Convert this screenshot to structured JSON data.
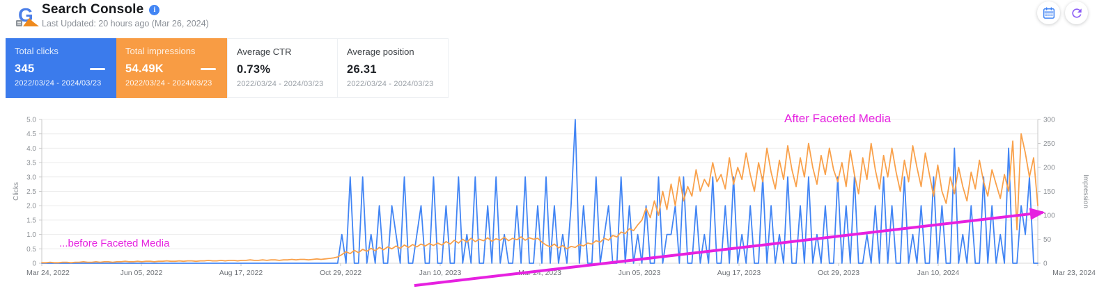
{
  "header": {
    "title": "Search Console",
    "subtitle": "Last Updated: 20 hours ago (Mar 26, 2024)",
    "logo_icon": "search-console-logo",
    "info_icon": "info-icon",
    "actions": [
      {
        "name": "calendar",
        "icon": "calendar-icon",
        "color": "#4285F4"
      },
      {
        "name": "refresh",
        "icon": "refresh-icon",
        "color": "#8B5CF6"
      }
    ]
  },
  "stats": [
    {
      "label": "Total clicks",
      "value": "345",
      "range": "2022/03/24 - 2024/03/23",
      "bg": "#3B7BEC",
      "highlighted": true
    },
    {
      "label": "Total impressions",
      "value": "54.49K",
      "range": "2022/03/24 - 2024/03/23",
      "bg": "#F89C44",
      "highlighted": true
    },
    {
      "label": "Average CTR",
      "value": "0.73%",
      "range": "2022/03/24 - 2024/03/23",
      "highlighted": false
    },
    {
      "label": "Average position",
      "value": "26.31",
      "range": "2022/03/24 - 2024/03/23",
      "highlighted": false
    }
  ],
  "chart_data": {
    "type": "line",
    "title": "",
    "x_tick_labels": [
      "Mar 24, 2022",
      "Jun 05, 2022",
      "Aug 17, 2022",
      "Oct 29, 2022",
      "Jan 10, 2023",
      "Mar 24, 2023",
      "Jun 05, 2023",
      "Aug 17, 2023",
      "Oct 29, 2023",
      "Jan 10, 2024",
      "Mar 23, 2024"
    ],
    "x_range": [
      "2022/03/24",
      "2024/03/23"
    ],
    "grid": "horizontal",
    "legend": "none",
    "left_axis": {
      "label": "Clicks",
      "min": 0,
      "max": 5,
      "ticks": [
        "0",
        "0.5",
        "1.0",
        "1.5",
        "2.0",
        "2.5",
        "3.0",
        "3.5",
        "4.0",
        "4.5",
        "5.0"
      ]
    },
    "right_axis": {
      "label": "Impression",
      "min": 0,
      "max": 300,
      "ticks": [
        "0",
        "50",
        "100",
        "150",
        "200",
        "250",
        "300"
      ]
    },
    "series": [
      {
        "name": "Clicks",
        "axis": "left",
        "color": "#4285F4",
        "values": [
          0,
          0,
          0,
          0,
          0,
          0,
          0,
          0,
          0,
          0,
          0,
          0,
          0,
          0,
          0,
          0,
          0,
          0,
          0,
          0,
          0,
          0,
          0,
          0,
          0,
          0,
          0,
          0,
          0,
          0,
          0,
          0,
          0,
          0,
          0,
          0,
          0,
          0,
          0,
          0,
          0,
          0,
          0,
          0,
          0,
          0,
          0,
          0,
          0,
          0,
          0,
          0,
          0,
          0,
          0,
          0,
          0,
          0,
          0,
          0,
          0,
          0,
          0,
          0,
          0,
          0,
          0,
          0,
          0,
          0,
          0,
          0,
          1,
          0,
          3,
          0,
          0,
          3,
          0,
          1,
          0,
          2,
          0,
          0,
          2,
          1,
          0,
          3,
          0,
          0,
          1,
          2,
          0,
          0,
          3,
          0,
          0,
          2,
          0,
          0,
          3,
          0,
          1,
          0,
          3,
          0,
          0,
          2,
          0,
          3,
          0,
          1,
          0,
          0,
          2,
          0,
          3,
          0,
          0,
          2,
          0,
          3,
          0,
          2,
          0,
          1,
          0,
          2,
          5,
          0,
          2,
          0,
          0,
          3,
          0,
          1,
          2,
          0,
          0,
          3,
          0,
          2,
          0,
          1,
          0,
          2,
          0,
          0,
          3,
          0,
          1,
          1,
          2,
          0,
          3,
          0,
          0,
          2,
          0,
          1,
          0,
          3,
          0,
          0,
          2,
          0,
          3,
          0,
          1,
          0,
          2,
          0,
          0,
          3,
          0,
          2,
          0,
          1,
          0,
          3,
          0,
          0,
          2,
          0,
          3,
          0,
          1,
          0,
          2,
          0,
          0,
          3,
          0,
          2,
          0,
          3,
          0,
          0,
          1,
          0,
          2,
          0,
          3,
          0,
          2,
          0,
          0,
          3,
          0,
          1,
          0,
          2,
          0,
          0,
          3,
          0,
          2,
          0,
          0,
          4,
          0,
          1,
          0,
          2,
          0,
          0,
          3,
          0,
          2,
          0,
          1,
          0,
          4,
          0,
          0,
          2,
          1,
          3,
          0,
          0
        ]
      },
      {
        "name": "Impressions",
        "axis": "right",
        "color": "#F9A14B",
        "values": [
          1,
          1,
          2,
          1,
          1,
          2,
          2,
          1,
          2,
          2,
          3,
          2,
          2,
          3,
          2,
          3,
          3,
          2,
          3,
          3,
          4,
          3,
          3,
          4,
          3,
          4,
          4,
          3,
          4,
          4,
          5,
          4,
          4,
          5,
          4,
          5,
          5,
          4,
          5,
          5,
          6,
          5,
          5,
          6,
          5,
          6,
          6,
          5,
          6,
          6,
          7,
          6,
          6,
          7,
          6,
          7,
          7,
          6,
          7,
          7,
          8,
          7,
          8,
          8,
          7,
          8,
          9,
          8,
          9,
          10,
          11,
          13,
          18,
          24,
          20,
          27,
          22,
          29,
          25,
          31,
          26,
          33,
          28,
          34,
          30,
          36,
          31,
          38,
          33,
          39,
          34,
          40,
          36,
          41,
          37,
          42,
          38,
          45,
          40,
          48,
          42,
          50,
          44,
          52,
          45,
          50,
          47,
          53,
          46,
          51,
          48,
          54,
          47,
          52,
          49,
          55,
          48,
          53,
          50,
          52,
          44,
          38,
          34,
          40,
          32,
          37,
          30,
          35,
          33,
          39,
          36,
          42,
          40,
          47,
          44,
          52,
          48,
          58,
          55,
          65,
          62,
          72,
          68,
          80,
          90,
          115,
          95,
          130,
          100,
          150,
          112,
          165,
          120,
          180,
          130,
          160,
          140,
          195,
          150,
          175,
          160,
          210,
          170,
          185,
          155,
          220,
          165,
          200,
          175,
          230,
          185,
          150,
          210,
          170,
          240,
          190,
          155,
          215,
          175,
          245,
          195,
          160,
          220,
          180,
          250,
          200,
          165,
          225,
          185,
          240,
          195,
          170,
          210,
          160,
          235,
          185,
          145,
          220,
          175,
          250,
          195,
          155,
          225,
          180,
          240,
          190,
          150,
          215,
          170,
          245,
          200,
          160,
          230,
          185,
          140,
          205,
          150,
          125,
          180,
          145,
          200,
          160,
          130,
          190,
          155,
          215,
          170,
          140,
          195,
          165,
          135,
          185,
          150,
          255,
          70,
          270,
          230,
          180,
          220,
          120
        ]
      }
    ],
    "annotations": {
      "before_label": "...before Faceted Media",
      "after_label": "After Faceted Media",
      "color": "#E621E0",
      "arrow": {
        "x1": 0.374,
        "y1": 1.155,
        "x2": 1.005,
        "y2": 0.647
      }
    }
  }
}
